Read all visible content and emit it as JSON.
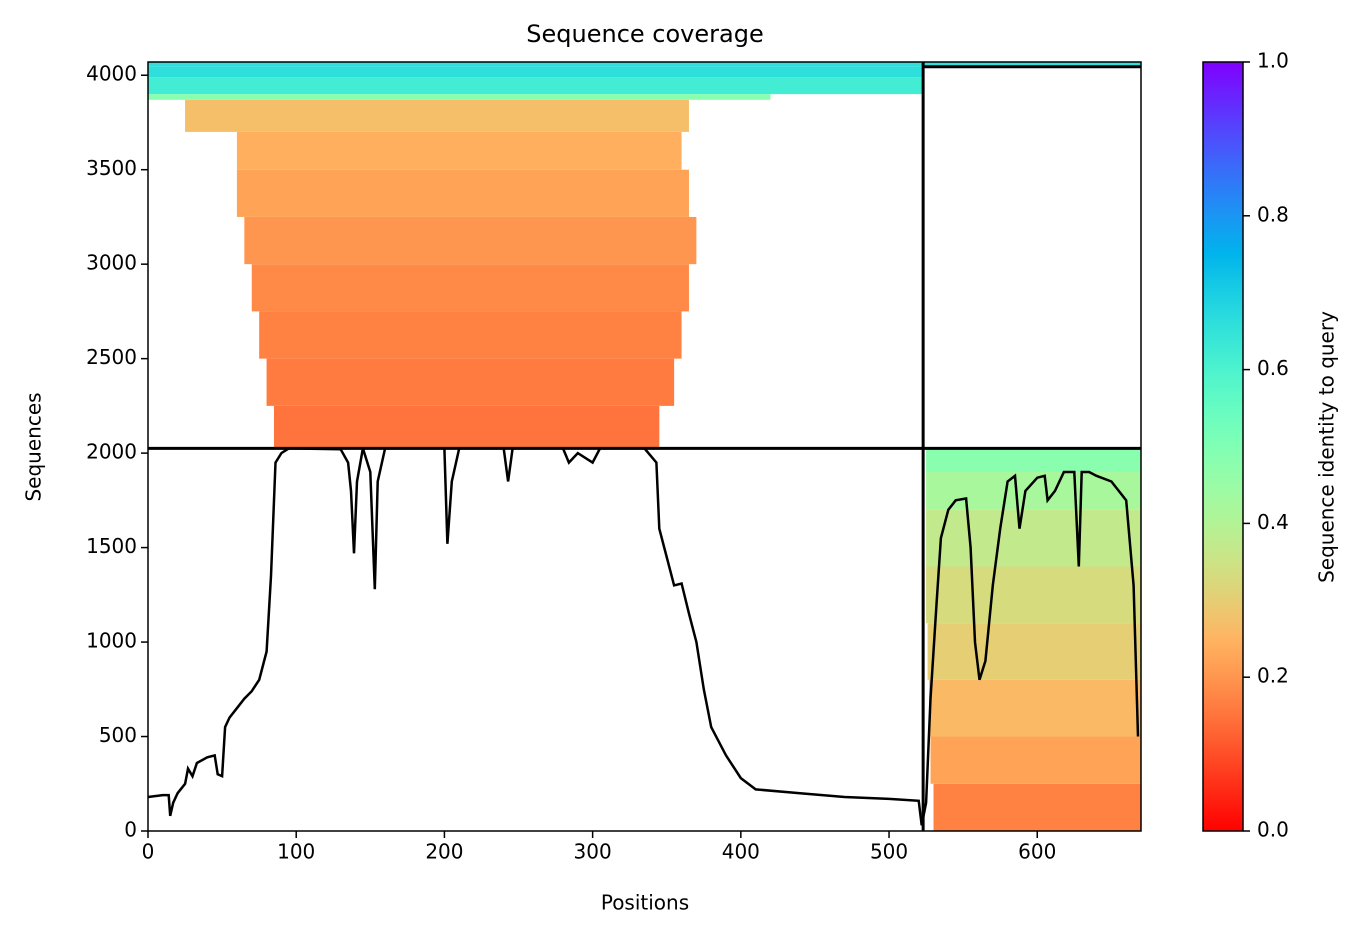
{
  "chart_data": {
    "type": "msa_coverage",
    "title": "Sequence coverage",
    "xlabel": "Positions",
    "ylabel": "Sequences",
    "xlim": [
      0,
      670
    ],
    "ylim": [
      0,
      4070
    ],
    "xticks": [
      0,
      100,
      200,
      300,
      400,
      500,
      600
    ],
    "yticks": [
      0,
      500,
      1000,
      1500,
      2000,
      2500,
      3000,
      3500,
      4000
    ],
    "colorbar": {
      "label": "Sequence identity to query",
      "lim": [
        0,
        1
      ],
      "ticks": [
        {
          "value": 0,
          "label": "0.0"
        },
        0.2,
        0.4,
        0.6,
        0.8,
        {
          "value": 1,
          "label": "1.0"
        }
      ]
    },
    "blocks": [
      {
        "x": [
          85,
          345
        ],
        "y": [
          2025,
          2250
        ],
        "identity": 0.15
      },
      {
        "x": [
          80,
          355
        ],
        "y": [
          2250,
          2500
        ],
        "identity": 0.16
      },
      {
        "x": [
          75,
          360
        ],
        "y": [
          2500,
          2750
        ],
        "identity": 0.17
      },
      {
        "x": [
          70,
          365
        ],
        "y": [
          2750,
          3000
        ],
        "identity": 0.18
      },
      {
        "x": [
          65,
          370
        ],
        "y": [
          3000,
          3250
        ],
        "identity": 0.2
      },
      {
        "x": [
          60,
          365
        ],
        "y": [
          3250,
          3500
        ],
        "identity": 0.22
      },
      {
        "x": [
          60,
          360
        ],
        "y": [
          3500,
          3700
        ],
        "identity": 0.24
      },
      {
        "x": [
          25,
          365
        ],
        "y": [
          3700,
          3870
        ],
        "identity": 0.27
      },
      {
        "x": [
          0,
          420
        ],
        "y": [
          3870,
          3900
        ],
        "identity": 0.48
      },
      {
        "x": [
          0,
          523
        ],
        "y": [
          3900,
          3990
        ],
        "identity": 0.62
      },
      {
        "x": [
          0,
          523
        ],
        "y": [
          3990,
          4045
        ],
        "identity": 0.66
      },
      {
        "x": [
          0,
          670
        ],
        "y": [
          4045,
          4070
        ],
        "identity": 0.66
      },
      {
        "x": [
          530,
          670
        ],
        "y": [
          0,
          250
        ],
        "identity": 0.17
      },
      {
        "x": [
          528,
          670
        ],
        "y": [
          250,
          500
        ],
        "identity": 0.22
      },
      {
        "x": [
          527,
          670
        ],
        "y": [
          500,
          800
        ],
        "identity": 0.26
      },
      {
        "x": [
          526,
          670
        ],
        "y": [
          800,
          1100
        ],
        "identity": 0.3
      },
      {
        "x": [
          525,
          670
        ],
        "y": [
          1100,
          1400
        ],
        "identity": 0.33
      },
      {
        "x": [
          525,
          670
        ],
        "y": [
          1400,
          1700
        ],
        "identity": 0.37
      },
      {
        "x": [
          525,
          670
        ],
        "y": [
          1700,
          1900
        ],
        "identity": 0.42
      },
      {
        "x": [
          525,
          670
        ],
        "y": [
          1900,
          2025
        ],
        "identity": 0.48
      }
    ],
    "dividers": [
      {
        "x": [
          523,
          523
        ],
        "y": [
          0,
          4070
        ]
      },
      {
        "x": [
          0,
          670
        ],
        "y": [
          2025,
          2025
        ]
      },
      {
        "x": [
          523,
          670
        ],
        "y": [
          4045,
          4045
        ]
      }
    ],
    "coverage": {
      "color": "#000000",
      "x": [
        0,
        10,
        14,
        15,
        17,
        20,
        25,
        27,
        30,
        33,
        40,
        45,
        47,
        50,
        52,
        55,
        60,
        65,
        70,
        75,
        80,
        83,
        86,
        90,
        95,
        130,
        135,
        137,
        139,
        141,
        145,
        150,
        153,
        155,
        160,
        200,
        202,
        205,
        210,
        240,
        243,
        246,
        280,
        284,
        290,
        300,
        305,
        335,
        343,
        345,
        350,
        355,
        360,
        365,
        370,
        375,
        380,
        390,
        400,
        410,
        440,
        470,
        500,
        520,
        522,
        525,
        528,
        532,
        535,
        540,
        545,
        552,
        555,
        558,
        561,
        565,
        570,
        575,
        580,
        585,
        588,
        592,
        600,
        605,
        607,
        612,
        618,
        625,
        628,
        630,
        635,
        640,
        650,
        660,
        665,
        668
      ],
      "y": [
        180,
        190,
        190,
        80,
        150,
        200,
        250,
        330,
        290,
        360,
        390,
        400,
        300,
        290,
        550,
        600,
        650,
        700,
        740,
        800,
        950,
        1350,
        1950,
        2000,
        2025,
        2020,
        1950,
        1800,
        1470,
        1850,
        2025,
        1900,
        1280,
        1850,
        2025,
        2025,
        1520,
        1850,
        2025,
        2025,
        1850,
        2025,
        2025,
        1950,
        2000,
        1950,
        2025,
        2025,
        1950,
        1600,
        1450,
        1300,
        1310,
        1150,
        1000,
        750,
        550,
        400,
        280,
        220,
        200,
        180,
        170,
        160,
        30,
        150,
        700,
        1200,
        1550,
        1700,
        1750,
        1760,
        1500,
        1000,
        800,
        900,
        1300,
        1600,
        1850,
        1880,
        1600,
        1800,
        1870,
        1880,
        1750,
        1800,
        1900,
        1900,
        1400,
        1900,
        1900,
        1880,
        1850,
        1750,
        1300,
        500
      ]
    }
  }
}
